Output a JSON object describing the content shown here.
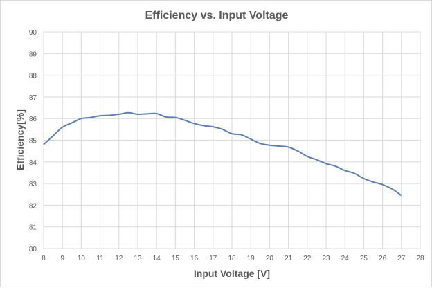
{
  "chart_data": {
    "type": "line",
    "title": "Efficiency vs. Input Voltage",
    "xlabel": "Input Voltage [V]",
    "ylabel": "Efficiency[%]",
    "xlim": [
      8,
      28
    ],
    "ylim": [
      80,
      90
    ],
    "xticks": [
      "8",
      "9",
      "10",
      "11",
      "12",
      "13",
      "14",
      "15",
      "16",
      "17",
      "18",
      "19",
      "20",
      "21",
      "22",
      "23",
      "24",
      "25",
      "26",
      "27",
      "28"
    ],
    "yticks": [
      "80",
      "81",
      "82",
      "83",
      "84",
      "85",
      "86",
      "87",
      "88",
      "89",
      "90"
    ],
    "grid": true,
    "line_color": "#5b7fb5",
    "x": [
      8,
      8.5,
      9,
      9.5,
      10,
      10.5,
      11,
      11.5,
      12,
      12.5,
      13,
      13.5,
      14,
      14.5,
      15,
      15.5,
      16,
      16.5,
      17,
      17.5,
      18,
      18.5,
      19,
      19.5,
      20,
      20.5,
      21,
      21.5,
      22,
      22.5,
      23,
      23.5,
      24,
      24.5,
      25,
      25.5,
      26,
      26.5,
      27
    ],
    "y": [
      84.8,
      85.2,
      85.6,
      85.8,
      86.0,
      86.05,
      86.13,
      86.15,
      86.2,
      86.27,
      86.2,
      86.22,
      86.23,
      86.07,
      86.05,
      85.92,
      85.77,
      85.67,
      85.62,
      85.5,
      85.3,
      85.25,
      85.05,
      84.85,
      84.77,
      84.73,
      84.68,
      84.5,
      84.25,
      84.1,
      83.92,
      83.8,
      83.6,
      83.47,
      83.23,
      83.07,
      82.95,
      82.75,
      82.45
    ]
  }
}
